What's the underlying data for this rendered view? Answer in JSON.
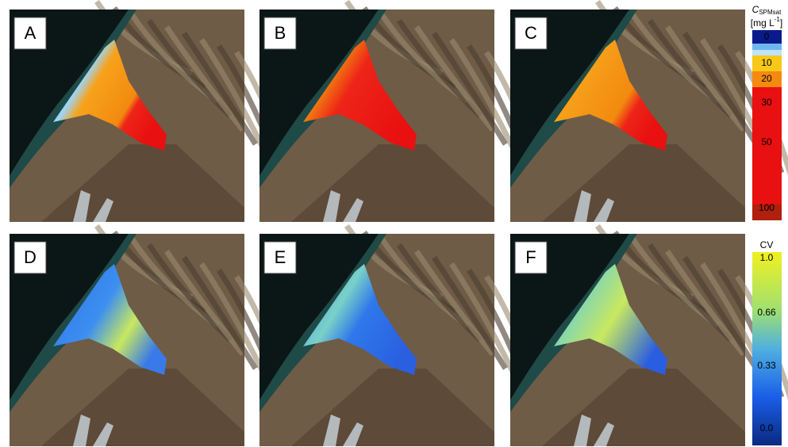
{
  "panels": [
    {
      "label": "A"
    },
    {
      "label": "B"
    },
    {
      "label": "C"
    },
    {
      "label": "D"
    },
    {
      "label": "E"
    },
    {
      "label": "F"
    }
  ],
  "legends": [
    {
      "symbol": "C",
      "subscript": "SPMsat",
      "unit": "[mg L",
      "unit_superscript": "-1",
      "unit_close": "]",
      "ticks": [
        "0",
        "10",
        "20",
        "30",
        "50",
        "100"
      ]
    },
    {
      "title": "CV",
      "ticks": [
        "1.0",
        "0.66",
        "0.33",
        "0.0"
      ]
    }
  ]
}
